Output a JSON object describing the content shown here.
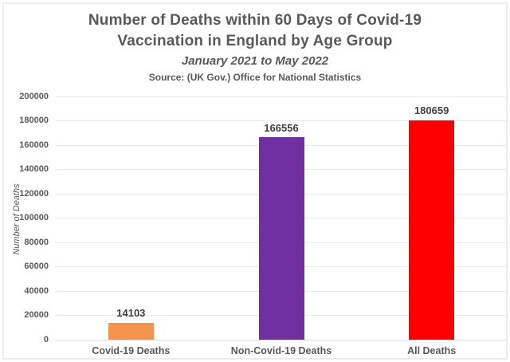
{
  "header": {
    "title_line1": "Number of Deaths within 60 Days of Covid-19",
    "title_line2": "Vaccination in England by Age Group",
    "subtitle": "January 2021 to May 2022",
    "source": "Source: (UK Gov.) Office for National Statistics"
  },
  "chart_data": {
    "type": "bar",
    "title": "Number of Deaths within 60 Days of Covid-19 Vaccination in England by Age Group",
    "subtitle": "January 2021 to May 2022",
    "source": "Source: (UK Gov.) Office for National Statistics",
    "categories": [
      "Covid-19 Deaths",
      "Non-Covid-19 Deaths",
      "All Deaths"
    ],
    "values": [
      14103,
      166556,
      180659
    ],
    "data_labels": [
      "14103",
      "166556",
      "180659"
    ],
    "bar_colors": [
      "#f4944c",
      "#7030a0",
      "#ff0000"
    ],
    "xlabel": "",
    "ylabel": "Number of Deaths",
    "ylim": [
      0,
      200000
    ],
    "ytick_step": 20000,
    "ytick_labels": [
      "0",
      "20000",
      "40000",
      "60000",
      "80000",
      "100000",
      "120000",
      "140000",
      "160000",
      "180000",
      "200000"
    ],
    "grid": true,
    "legend": false
  },
  "colors": {
    "title_text": "#595959",
    "axis_text": "#595959",
    "value_label_text": "#3f3f3f",
    "gridline": "#e9e9e9",
    "zero_line": "#d6d6d6",
    "frame_border": "#ececec",
    "background": "#ffffff"
  }
}
